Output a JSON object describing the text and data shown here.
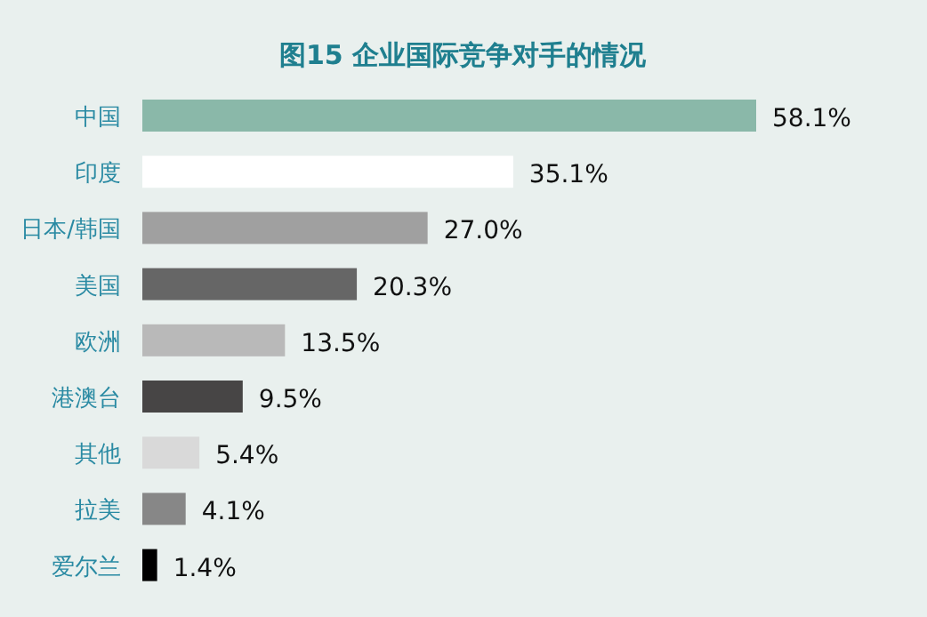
{
  "chart_data": {
    "type": "bar",
    "orientation": "horizontal",
    "title": "图15 企业国际竞争对手的情况",
    "categories": [
      "中国",
      "印度",
      "日本/韩国",
      "美国",
      "欧洲",
      "港澳台",
      "其他",
      "拉美",
      "爱尔兰"
    ],
    "values": [
      58.1,
      35.1,
      27.0,
      20.3,
      13.5,
      9.5,
      5.4,
      4.1,
      1.4
    ],
    "value_labels": [
      "58.1%",
      "35.1%",
      "27.0%",
      "20.3%",
      "13.5%",
      "9.5%",
      "5.4%",
      "4.1%",
      "1.4%"
    ],
    "colors": [
      "#8ab8a9",
      "#ffffff",
      "#a0a0a0",
      "#666666",
      "#b9b9b9",
      "#474545",
      "#d9d9d9",
      "#878787",
      "#000000"
    ]
  }
}
